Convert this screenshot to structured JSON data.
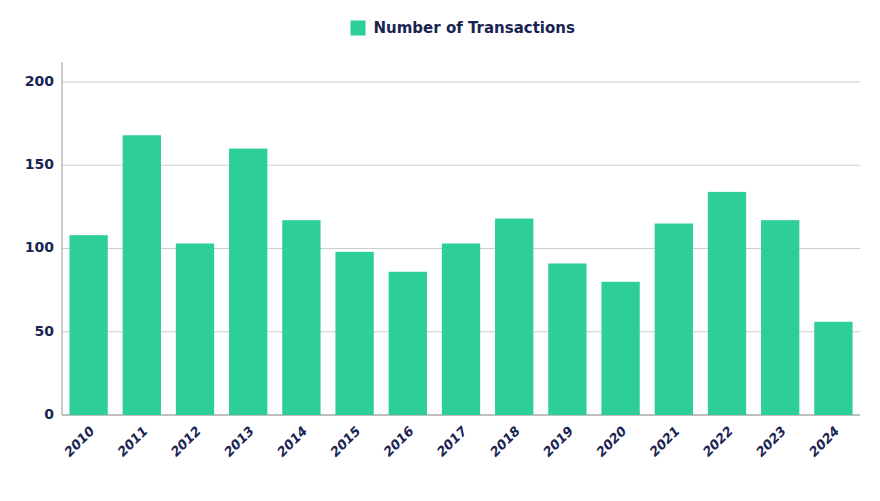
{
  "chart_data": {
    "type": "bar",
    "categories": [
      "2010",
      "2011",
      "2012",
      "2013",
      "2014",
      "2015",
      "2016",
      "2017",
      "2018",
      "2019",
      "2020",
      "2021",
      "2022",
      "2023",
      "2024"
    ],
    "series": [
      {
        "name": "Number of Transactions",
        "color": "#2DCE98",
        "values": [
          108,
          168,
          103,
          160,
          117,
          98,
          86,
          103,
          118,
          91,
          80,
          115,
          134,
          117,
          56
        ]
      }
    ],
    "ylim": [
      0,
      212
    ],
    "yticks": [
      0,
      50,
      100,
      150,
      200
    ],
    "grid": true,
    "legend": "top"
  }
}
